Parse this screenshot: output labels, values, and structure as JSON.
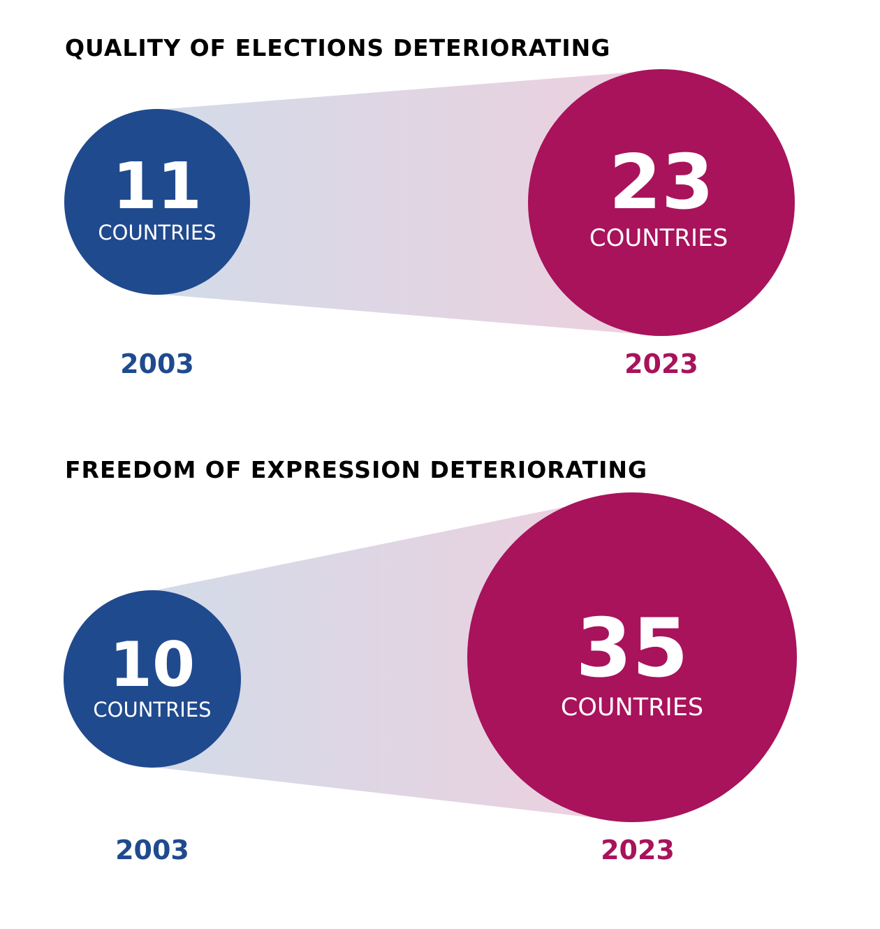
{
  "colors": {
    "year_2003": "#204a8e",
    "year_2023": "#a8135b",
    "title": "#000000",
    "circle_text": "#ffffff"
  },
  "chart_data": [
    {
      "type": "bubble-comparison",
      "title": "QUALITY OF ELECTIONS DETERIORATING",
      "unit_label": "COUNTRIES",
      "points": [
        {
          "year": "2003",
          "value": 11,
          "value_label": "11",
          "color": "#204a8e"
        },
        {
          "year": "2023",
          "value": 23,
          "value_label": "23",
          "color": "#a8135b"
        }
      ]
    },
    {
      "type": "bubble-comparison",
      "title": "FREEDOM OF EXPRESSION DETERIORATING",
      "unit_label": "COUNTRIES",
      "points": [
        {
          "year": "2003",
          "value": 10,
          "value_label": "10",
          "color": "#204a8e"
        },
        {
          "year": "2023",
          "value": 35,
          "value_label": "35",
          "color": "#a8135b"
        }
      ]
    }
  ]
}
